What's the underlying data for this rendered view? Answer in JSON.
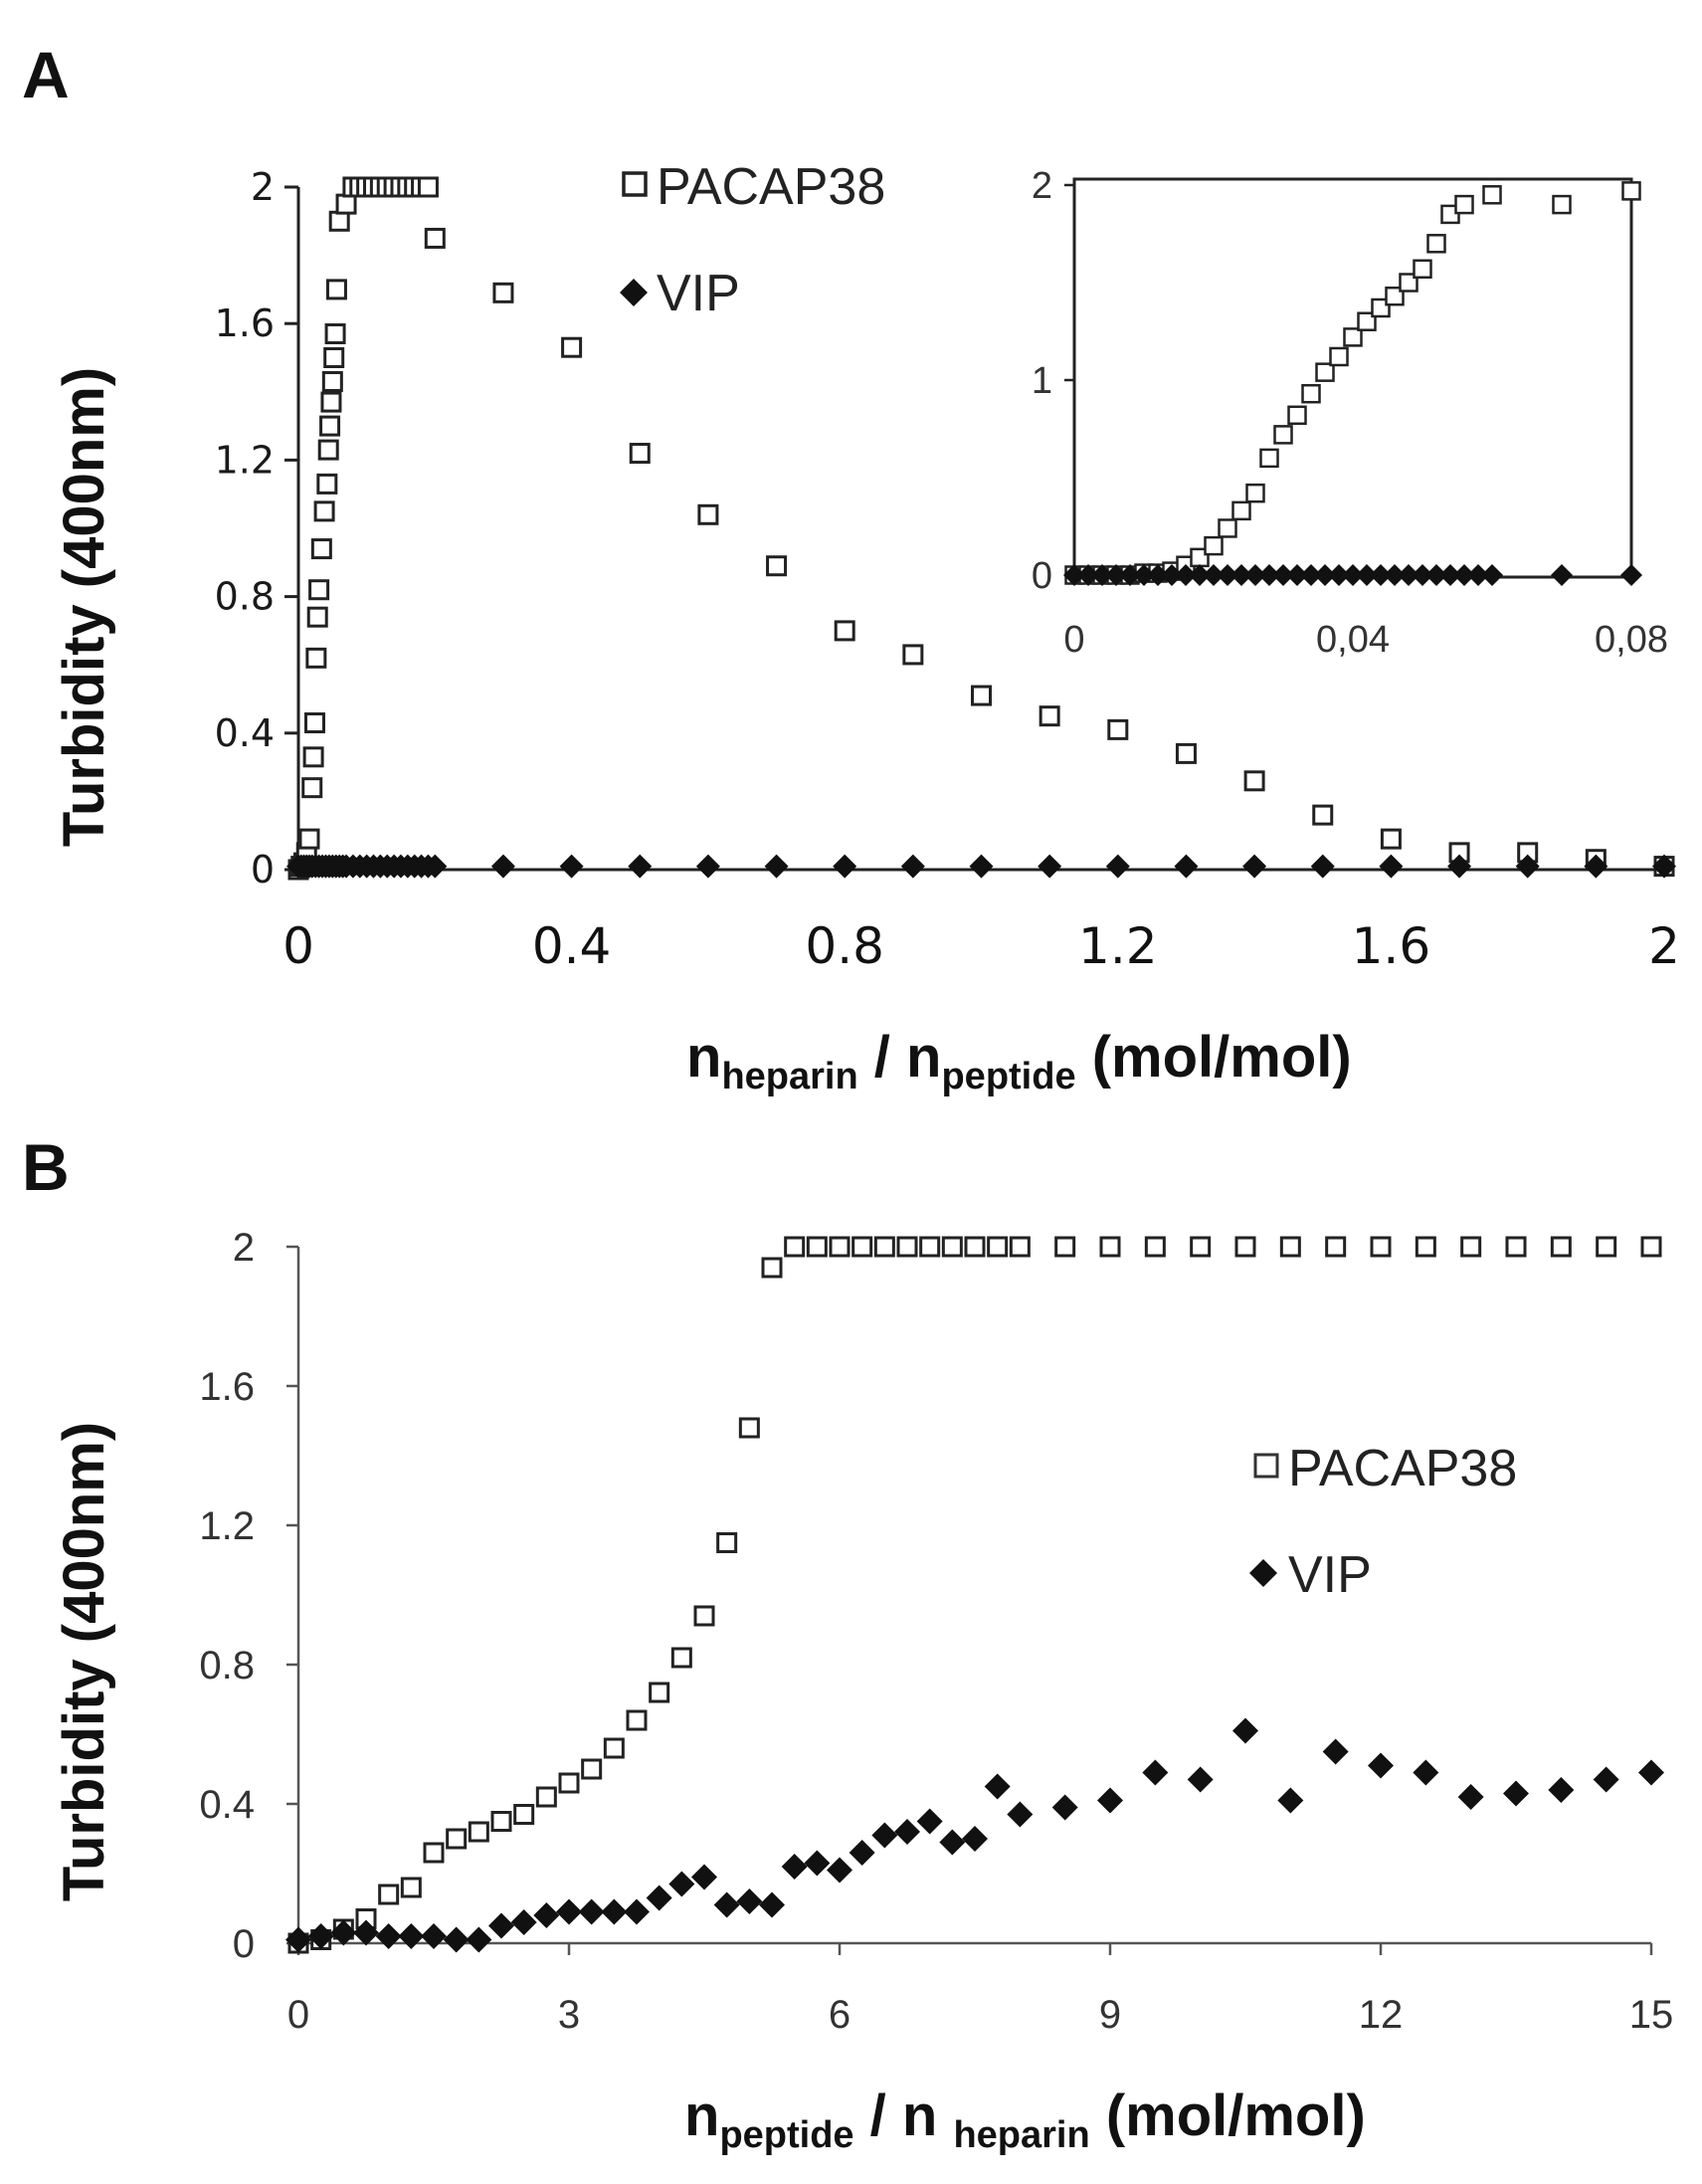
{
  "panels": {
    "a": {
      "letter": "A"
    },
    "b": {
      "letter": "B"
    }
  },
  "chart_data": [
    {
      "id": "A",
      "type": "scatter",
      "ylabel": "Turbidity (400nm)",
      "xlabel": {
        "n1": "n",
        "sub1": "heparin",
        "sep": " / ",
        "n2": "n",
        "sub2": "peptide",
        "units": " (mol/mol)"
      },
      "xlim": [
        0,
        2
      ],
      "ylim": [
        0,
        2
      ],
      "xticks": [
        0,
        0.4,
        0.8,
        1.2,
        1.6,
        2
      ],
      "xtick_labels": [
        "0",
        "0.4",
        "0.8",
        "1.2",
        "1.6",
        "2"
      ],
      "yticks": [
        0,
        0.4,
        0.8,
        1.2,
        1.6,
        2
      ],
      "ytick_labels": [
        "0",
        "0.4",
        "0.8",
        "1.2",
        "1.6",
        "2"
      ],
      "legend": [
        {
          "name": "PACAP38",
          "marker": "open-square"
        },
        {
          "name": "VIP",
          "marker": "filled-diamond"
        }
      ],
      "series": [
        {
          "name": "PACAP38",
          "x": [
            0,
            0.004,
            0.008,
            0.012,
            0.016,
            0.02,
            0.022,
            0.024,
            0.026,
            0.028,
            0.03,
            0.034,
            0.038,
            0.042,
            0.044,
            0.046,
            0.048,
            0.05,
            0.052,
            0.054,
            0.056,
            0.06,
            0.07,
            0.08,
            0.09,
            0.1,
            0.11,
            0.12,
            0.13,
            0.14,
            0.15,
            0.16,
            0.17,
            0.18,
            0.19,
            0.2,
            0.3,
            0.4,
            0.5,
            0.6,
            0.7,
            0.8,
            0.9,
            1.0,
            1.1,
            1.2,
            1.3,
            1.4,
            1.5,
            1.6,
            1.7,
            1.8,
            1.9,
            2.0
          ],
          "y": [
            0,
            0.01,
            0.02,
            0.05,
            0.09,
            0.24,
            0.33,
            0.43,
            0.62,
            0.74,
            0.82,
            0.94,
            1.05,
            1.13,
            1.23,
            1.3,
            1.37,
            1.43,
            1.5,
            1.57,
            1.7,
            1.9,
            1.95,
            2,
            2,
            2,
            2,
            2,
            2,
            2,
            2,
            2,
            2,
            2,
            2,
            1.85,
            1.69,
            1.53,
            1.22,
            1.04,
            0.89,
            0.7,
            0.63,
            0.51,
            0.45,
            0.41,
            0.34,
            0.26,
            0.16,
            0.09,
            0.05,
            0.05,
            0.03,
            0.01
          ]
        },
        {
          "name": "VIP",
          "x": [
            0,
            0.004,
            0.008,
            0.012,
            0.016,
            0.02,
            0.025,
            0.03,
            0.035,
            0.04,
            0.045,
            0.05,
            0.055,
            0.06,
            0.065,
            0.07,
            0.08,
            0.09,
            0.1,
            0.11,
            0.12,
            0.13,
            0.14,
            0.15,
            0.16,
            0.17,
            0.18,
            0.19,
            0.2,
            0.3,
            0.4,
            0.5,
            0.6,
            0.7,
            0.8,
            0.9,
            1.0,
            1.1,
            1.2,
            1.3,
            1.4,
            1.5,
            1.6,
            1.7,
            1.8,
            1.9,
            2.0
          ],
          "y": [
            0.01,
            0.01,
            0.01,
            0.01,
            0.01,
            0.01,
            0.01,
            0.01,
            0.01,
            0.01,
            0.01,
            0.01,
            0.01,
            0.01,
            0.01,
            0.01,
            0.01,
            0.01,
            0.01,
            0.01,
            0.01,
            0.01,
            0.01,
            0.01,
            0.01,
            0.01,
            0.01,
            0.01,
            0.01,
            0.01,
            0.01,
            0.01,
            0.01,
            0.01,
            0.01,
            0.01,
            0.01,
            0.01,
            0.01,
            0.01,
            0.01,
            0.01,
            0.01,
            0.01,
            0.01,
            0.01,
            0.01
          ]
        }
      ],
      "inset": {
        "type": "scatter",
        "xlim": [
          0,
          0.08
        ],
        "ylim": [
          0,
          2
        ],
        "xticks": [
          0,
          0.04,
          0.08
        ],
        "xtick_labels": [
          "0",
          "0,04",
          "0,08"
        ],
        "yticks": [
          0,
          1,
          2
        ],
        "ytick_labels": [
          "0",
          "1",
          "2"
        ],
        "series": [
          {
            "name": "PACAP38",
            "x": [
              0,
              0.002,
              0.004,
              0.006,
              0.008,
              0.01,
              0.012,
              0.014,
              0.016,
              0.018,
              0.02,
              0.022,
              0.024,
              0.026,
              0.028,
              0.03,
              0.032,
              0.034,
              0.036,
              0.038,
              0.04,
              0.042,
              0.044,
              0.046,
              0.048,
              0.05,
              0.052,
              0.054,
              0.056,
              0.06,
              0.07,
              0.08
            ],
            "y": [
              0,
              0,
              0,
              0,
              0,
              0.01,
              0.01,
              0.02,
              0.05,
              0.09,
              0.15,
              0.24,
              0.33,
              0.42,
              0.6,
              0.72,
              0.82,
              0.93,
              1.04,
              1.12,
              1.22,
              1.3,
              1.37,
              1.43,
              1.5,
              1.57,
              1.7,
              1.85,
              1.9,
              1.95,
              1.9,
              1.97
            ]
          },
          {
            "name": "VIP",
            "x": [
              0,
              0.002,
              0.004,
              0.006,
              0.008,
              0.01,
              0.012,
              0.014,
              0.016,
              0.018,
              0.02,
              0.022,
              0.024,
              0.026,
              0.028,
              0.03,
              0.032,
              0.034,
              0.036,
              0.038,
              0.04,
              0.042,
              0.044,
              0.046,
              0.048,
              0.05,
              0.052,
              0.054,
              0.056,
              0.058,
              0.06,
              0.07,
              0.08
            ],
            "y": [
              0,
              0,
              0,
              0,
              0,
              0,
              0,
              0,
              0,
              0,
              0,
              0,
              0,
              0,
              0,
              0,
              0,
              0,
              0,
              0,
              0,
              0,
              0,
              0,
              0,
              0,
              0,
              0,
              0,
              0,
              0,
              0,
              0
            ]
          }
        ]
      }
    },
    {
      "id": "B",
      "type": "scatter",
      "ylabel": "Turbidity (400nm)",
      "xlabel": {
        "n1": "n",
        "sub1": "peptide",
        "sep": " / ",
        "n2": "n ",
        "sub2": "heparin",
        "units": " (mol/mol)"
      },
      "xlim": [
        0,
        15
      ],
      "ylim": [
        0,
        2
      ],
      "xticks": [
        0,
        3,
        6,
        9,
        12,
        15
      ],
      "xtick_labels": [
        "0",
        "3",
        "6",
        "9",
        "12",
        "15"
      ],
      "yticks": [
        0,
        0.4,
        0.8,
        1.2,
        1.6,
        2
      ],
      "ytick_labels": [
        "0",
        "0.4",
        "0.8",
        "1.2",
        "1.6",
        "2"
      ],
      "legend": [
        {
          "name": "PACAP38",
          "marker": "open-square"
        },
        {
          "name": "VIP",
          "marker": "filled-diamond"
        }
      ],
      "series": [
        {
          "name": "PACAP38",
          "x": [
            0,
            0.25,
            0.5,
            0.75,
            1.0,
            1.25,
            1.5,
            1.75,
            2.0,
            2.25,
            2.5,
            2.75,
            3.0,
            3.25,
            3.5,
            3.75,
            4.0,
            4.25,
            4.5,
            4.75,
            5.0,
            5.25,
            5.5,
            5.75,
            6.0,
            6.25,
            6.5,
            6.75,
            7.0,
            7.25,
            7.5,
            7.75,
            8.0,
            8.5,
            9.0,
            9.5,
            10.0,
            10.5,
            11.0,
            11.5,
            12.0,
            12.5,
            13.0,
            13.5,
            14.0,
            14.5,
            15.0
          ],
          "y": [
            0,
            0.01,
            0.04,
            0.07,
            0.14,
            0.16,
            0.26,
            0.3,
            0.32,
            0.35,
            0.37,
            0.42,
            0.46,
            0.5,
            0.56,
            0.64,
            0.72,
            0.82,
            0.94,
            1.15,
            1.48,
            1.94,
            2,
            2,
            2,
            2,
            2,
            2,
            2,
            2,
            2,
            2,
            2,
            2,
            2,
            2,
            2,
            2,
            2,
            2,
            2,
            2,
            2,
            2,
            2,
            2,
            2
          ]
        },
        {
          "name": "VIP",
          "x": [
            0,
            0.25,
            0.5,
            0.75,
            1.0,
            1.25,
            1.5,
            1.75,
            2.0,
            2.25,
            2.5,
            2.75,
            3.0,
            3.25,
            3.5,
            3.75,
            4.0,
            4.25,
            4.5,
            4.75,
            5.0,
            5.25,
            5.5,
            5.75,
            6.0,
            6.25,
            6.5,
            6.75,
            7.0,
            7.25,
            7.5,
            7.75,
            8.0,
            8.5,
            9.0,
            9.5,
            10.0,
            10.5,
            11.0,
            11.5,
            12.0,
            12.5,
            13.0,
            13.5,
            14.0,
            14.5,
            15.0
          ],
          "y": [
            0.01,
            0.02,
            0.03,
            0.03,
            0.02,
            0.02,
            0.02,
            0.01,
            0.01,
            0.05,
            0.06,
            0.08,
            0.09,
            0.09,
            0.09,
            0.09,
            0.13,
            0.17,
            0.19,
            0.11,
            0.12,
            0.11,
            0.22,
            0.23,
            0.21,
            0.26,
            0.31,
            0.32,
            0.35,
            0.29,
            0.3,
            0.45,
            0.37,
            0.39,
            0.41,
            0.49,
            0.47,
            0.61,
            0.41,
            0.55,
            0.51,
            0.49,
            0.42,
            0.43,
            0.44,
            0.47,
            0.49
          ]
        }
      ]
    }
  ]
}
